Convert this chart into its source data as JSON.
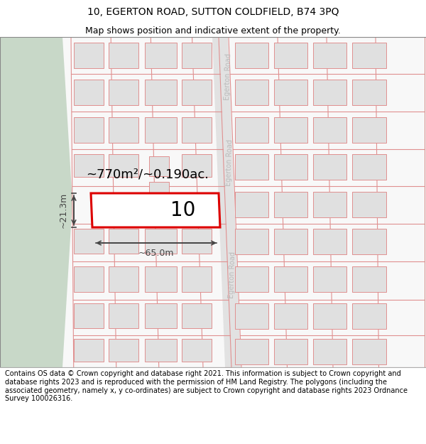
{
  "title_line1": "10, EGERTON ROAD, SUTTON COLDFIELD, B74 3PQ",
  "title_line2": "Map shows position and indicative extent of the property.",
  "footer_text": "Contains OS data © Crown copyright and database right 2021. This information is subject to Crown copyright and database rights 2023 and is reproduced with the permission of HM Land Registry. The polygons (including the associated geometry, namely x, y co-ordinates) are subject to Crown copyright and database rights 2023 Ordnance Survey 100026316.",
  "bg_map_color": "#f0f0f0",
  "bg_left_color": "#c8d8c8",
  "road_fill": "#e8e8e8",
  "building_fill": "#e0e0e0",
  "building_edge": "#e09090",
  "highlight_fill": "#ffffff",
  "highlight_edge": "#dd0000",
  "road_label_color": "#bbbbbb",
  "annotation_color": "#444444",
  "width_label": "~65.0m",
  "height_label": "~21.3m",
  "area_label": "~770m²/~0.190ac.",
  "number_label": "10",
  "title_fontsize": 10,
  "subtitle_fontsize": 9,
  "footer_fontsize": 7.0
}
